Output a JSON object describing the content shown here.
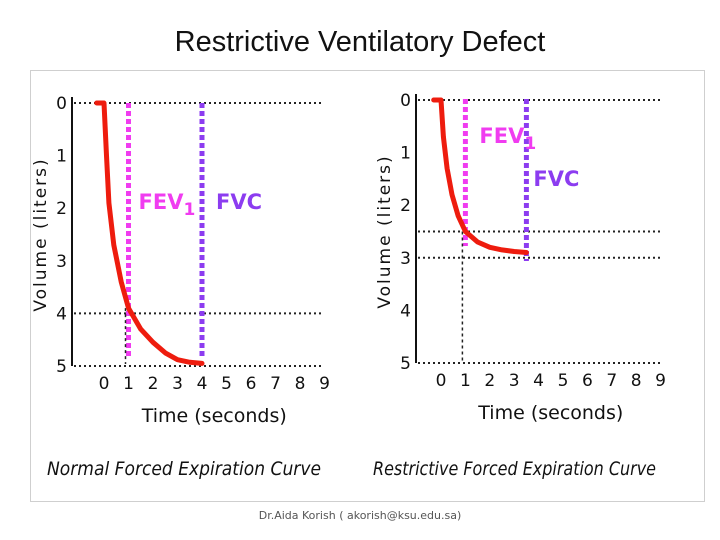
{
  "slide": {
    "title": "Restrictive Ventilatory Defect",
    "footer": "Dr.Aida Korish ( akorish@ksu.edu.sa)"
  },
  "colors": {
    "curve": "#ee1c0e",
    "fev1_line": "#f03cf0",
    "fvc_line": "#8c3cf0",
    "axis": "#111111",
    "guides": "#222222"
  },
  "chart_data": [
    {
      "type": "line",
      "title": "Normal Forced Expiration Curve",
      "xlabel": "Time (seconds)",
      "ylabel": "Volume (liters)",
      "x_ticks": [
        "0",
        "1",
        "2",
        "3",
        "4",
        "5",
        "6",
        "7",
        "8",
        "9"
      ],
      "y_ticks": [
        "0",
        "1",
        "2",
        "3",
        "4",
        "5"
      ],
      "xlim": [
        0,
        9
      ],
      "ylim": [
        0,
        5
      ],
      "y_inverted": true,
      "grid": false,
      "series": [
        {
          "values": [
            [
              -0.3,
              0
            ],
            [
              0,
              0
            ],
            [
              0.1,
              1
            ],
            [
              0.2,
              1.9
            ],
            [
              0.4,
              2.7
            ],
            [
              0.7,
              3.4
            ],
            [
              1,
              3.9
            ],
            [
              1.5,
              4.3
            ],
            [
              2,
              4.55
            ],
            [
              2.5,
              4.75
            ],
            [
              3,
              4.88
            ],
            [
              3.5,
              4.93
            ],
            [
              4,
              4.95
            ]
          ]
        }
      ],
      "vertical_markers": [
        {
          "label": "FEV",
          "subscript": "1",
          "x": 1
        },
        {
          "label": "FVC",
          "x": 4
        }
      ],
      "horizontal_guides": [
        0,
        4,
        5
      ],
      "dashed_drop_x": 1
    },
    {
      "type": "line",
      "title": "Restrictive Forced Expiration Curve",
      "xlabel": "Time (seconds)",
      "ylabel": "Volume (liters)",
      "x_ticks": [
        "0",
        "1",
        "2",
        "3",
        "4",
        "5",
        "6",
        "7",
        "8",
        "9"
      ],
      "y_ticks": [
        "0",
        "1",
        "2",
        "3",
        "4",
        "5"
      ],
      "xlim": [
        0,
        9
      ],
      "ylim": [
        0,
        5
      ],
      "y_inverted": true,
      "grid": false,
      "series": [
        {
          "values": [
            [
              -0.3,
              0
            ],
            [
              0,
              0
            ],
            [
              0.1,
              0.7
            ],
            [
              0.25,
              1.3
            ],
            [
              0.45,
              1.8
            ],
            [
              0.7,
              2.2
            ],
            [
              1,
              2.5
            ],
            [
              1.5,
              2.7
            ],
            [
              2,
              2.8
            ],
            [
              2.5,
              2.85
            ],
            [
              3,
              2.88
            ],
            [
              3.5,
              2.9
            ]
          ]
        }
      ],
      "vertical_markers": [
        {
          "label": "FEV",
          "subscript": "1",
          "x": 1
        },
        {
          "label": "FVC",
          "x": 3.5
        }
      ],
      "horizontal_guides": [
        0,
        2.5,
        3,
        5
      ],
      "dashed_drop_x": 1
    }
  ]
}
